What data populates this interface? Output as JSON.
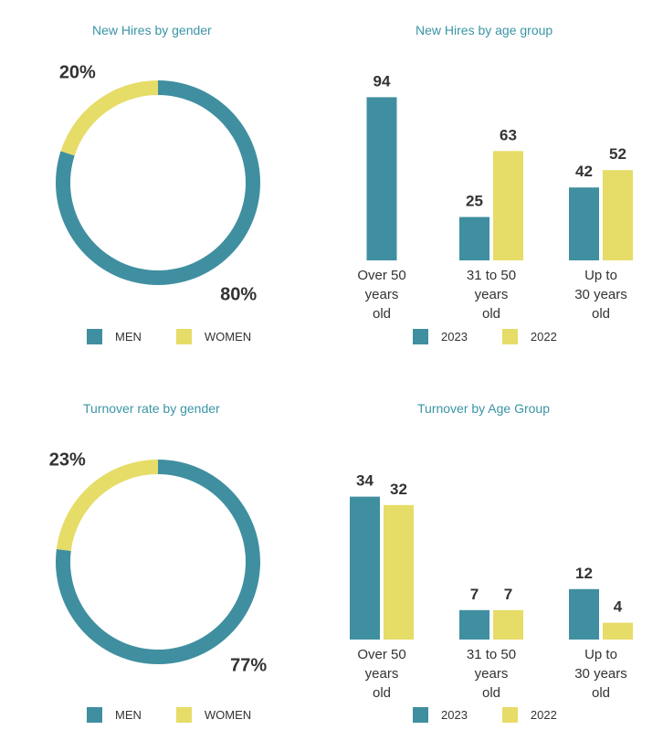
{
  "colors": {
    "primary": "#3f8fa0",
    "secondary": "#e6dc68",
    "title": "#3a95a5",
    "text": "#333333"
  },
  "chart_data": [
    {
      "id": "hires-gender",
      "type": "pie",
      "title": "New Hires by gender",
      "slices": [
        {
          "label": "MEN",
          "value": 80,
          "display": "80%"
        },
        {
          "label": "WOMEN",
          "value": 20,
          "display": "20%"
        }
      ],
      "legend": [
        "MEN",
        "WOMEN"
      ],
      "legend_placement": "bottom"
    },
    {
      "id": "hires-age",
      "type": "bar",
      "title": "New Hires by age group",
      "categories": [
        [
          "Over 50",
          "years",
          "old"
        ],
        [
          "31 to 50",
          "years",
          "old"
        ],
        [
          "Up to",
          "30 years",
          "old"
        ]
      ],
      "series": [
        {
          "name": "2023",
          "values": [
            94,
            25,
            42
          ]
        },
        {
          "name": "2022",
          "values": [
            null,
            63,
            52
          ]
        }
      ],
      "ylim": [
        0,
        100
      ],
      "legend_placement": "bottom"
    },
    {
      "id": "turnover-gender",
      "type": "pie",
      "title": "Turnover rate by gender",
      "slices": [
        {
          "label": "MEN",
          "value": 77,
          "display": "77%"
        },
        {
          "label": "WOMEN",
          "value": 23,
          "display": "23%"
        }
      ],
      "legend": [
        "MEN",
        "WOMEN"
      ],
      "legend_placement": "bottom"
    },
    {
      "id": "turnover-age",
      "type": "bar",
      "title": "Turnover by Age Group",
      "categories": [
        [
          "Over 50",
          "years",
          "old"
        ],
        [
          "31 to 50",
          "years",
          "old"
        ],
        [
          "Up to",
          "30 years",
          "old"
        ]
      ],
      "series": [
        {
          "name": "2023",
          "values": [
            34,
            7,
            12
          ]
        },
        {
          "name": "2022",
          "values": [
            32,
            7,
            4
          ]
        }
      ],
      "ylim": [
        0,
        36
      ],
      "legend_placement": "bottom"
    }
  ]
}
